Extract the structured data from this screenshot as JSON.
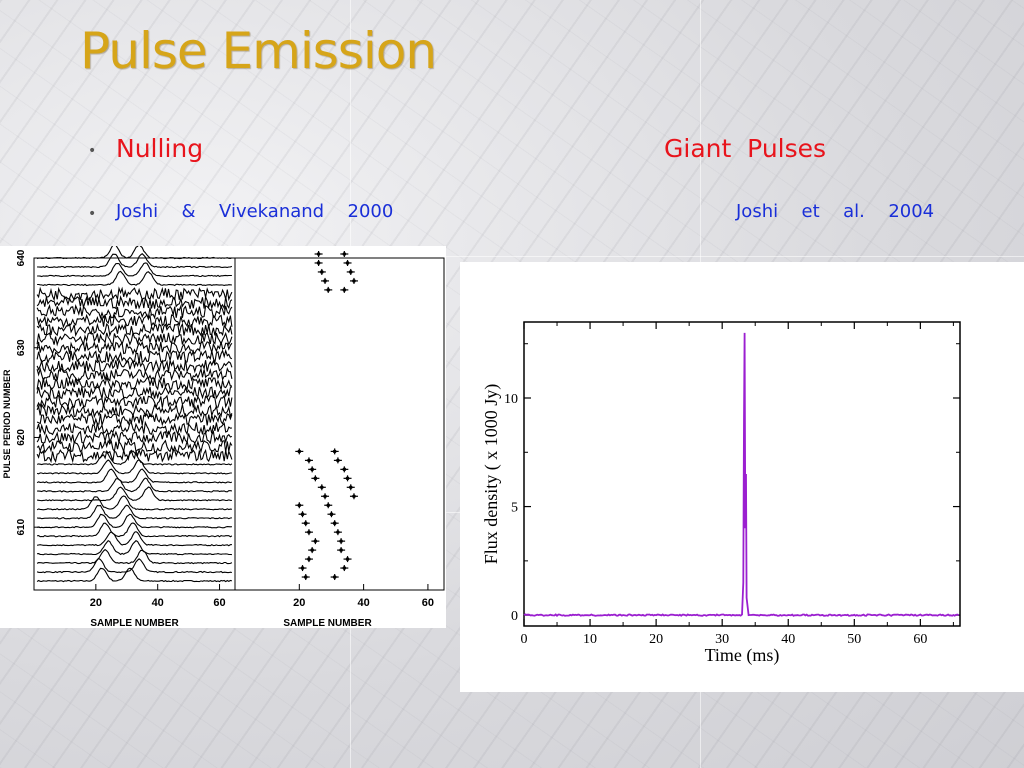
{
  "slide": {
    "title": "Pulse Emission",
    "bullet_glyph": "•",
    "left_heading": "Nulling",
    "right_heading": "Giant  Pulses",
    "left_reference": "Joshi  &  Vivekanand  2000",
    "right_reference": "Joshi  et  al.  2004"
  },
  "colors": {
    "title": "#d6a519",
    "heading": "#e8141c",
    "reference": "#1a2fd8",
    "giant_pulse_line": "#9b1fd0"
  },
  "chart_data": [
    {
      "type": "line",
      "subtype": "stacked-pulse-profiles",
      "xlabel": "SAMPLE NUMBER",
      "ylabel": "PULSE PERIOD NUMBER",
      "x_ticks": [
        20,
        40,
        60
      ],
      "y_ticks": [
        610,
        620,
        630,
        640
      ],
      "xlim": [
        0,
        65
      ],
      "ylim": [
        603,
        640
      ],
      "periods_with_emission": [
        604,
        605,
        606,
        607,
        608,
        609,
        610,
        611,
        612,
        613,
        614,
        615,
        616,
        617,
        637,
        638,
        639,
        640
      ],
      "null_periods": [
        618,
        619,
        620,
        621,
        622,
        623,
        624,
        625,
        626,
        627,
        628,
        629,
        630,
        631,
        632,
        633,
        634,
        635,
        636
      ]
    },
    {
      "type": "scatter",
      "subtype": "subpulse-drift-positions",
      "xlabel": "SAMPLE NUMBER",
      "x_ticks": [
        20,
        40,
        60
      ],
      "xlim": [
        0,
        65
      ],
      "ylim": [
        603,
        640
      ],
      "tracks": [
        {
          "points": [
            [
              22,
              604
            ],
            [
              21,
              605
            ],
            [
              23,
              606
            ],
            [
              24,
              607
            ],
            [
              25,
              608
            ],
            [
              23,
              609
            ],
            [
              22,
              610
            ],
            [
              21,
              611
            ],
            [
              20,
              612
            ]
          ]
        },
        {
          "points": [
            [
              31,
              604
            ],
            [
              34,
              605
            ],
            [
              35,
              606
            ],
            [
              33,
              607
            ],
            [
              33,
              608
            ],
            [
              32,
              609
            ],
            [
              31,
              610
            ],
            [
              30,
              611
            ],
            [
              29,
              612
            ],
            [
              28,
              613
            ],
            [
              27,
              614
            ],
            [
              25,
              615
            ],
            [
              24,
              616
            ],
            [
              23,
              617
            ],
            [
              20,
              618
            ]
          ]
        },
        {
          "points": [
            [
              37,
              613
            ],
            [
              36,
              614
            ],
            [
              35,
              615
            ],
            [
              34,
              616
            ],
            [
              32,
              617
            ],
            [
              31,
              618
            ]
          ]
        },
        {
          "points": [
            [
              29,
              636
            ],
            [
              28,
              637
            ],
            [
              27,
              638
            ],
            [
              26,
              639
            ],
            [
              26,
              640
            ]
          ]
        },
        {
          "points": [
            [
              34,
              636
            ],
            [
              37,
              637
            ],
            [
              36,
              638
            ],
            [
              35,
              639
            ],
            [
              34,
              640
            ]
          ]
        }
      ]
    },
    {
      "type": "line",
      "subtype": "giant-pulse-time-series",
      "xlabel": "Time (ms)",
      "ylabel": "Flux density ( x 1000 Jy)",
      "x_ticks": [
        0,
        10,
        20,
        30,
        40,
        50,
        60
      ],
      "y_ticks": [
        0,
        5,
        10
      ],
      "xlim": [
        0,
        66
      ],
      "ylim": [
        -0.5,
        13.5
      ],
      "x": [
        0,
        33.0,
        33.2,
        33.3,
        33.4,
        33.5,
        33.6,
        33.7,
        34.0,
        66
      ],
      "y": [
        0,
        0,
        1.5,
        9.0,
        13.0,
        4.0,
        6.5,
        0.8,
        0,
        0
      ]
    }
  ]
}
